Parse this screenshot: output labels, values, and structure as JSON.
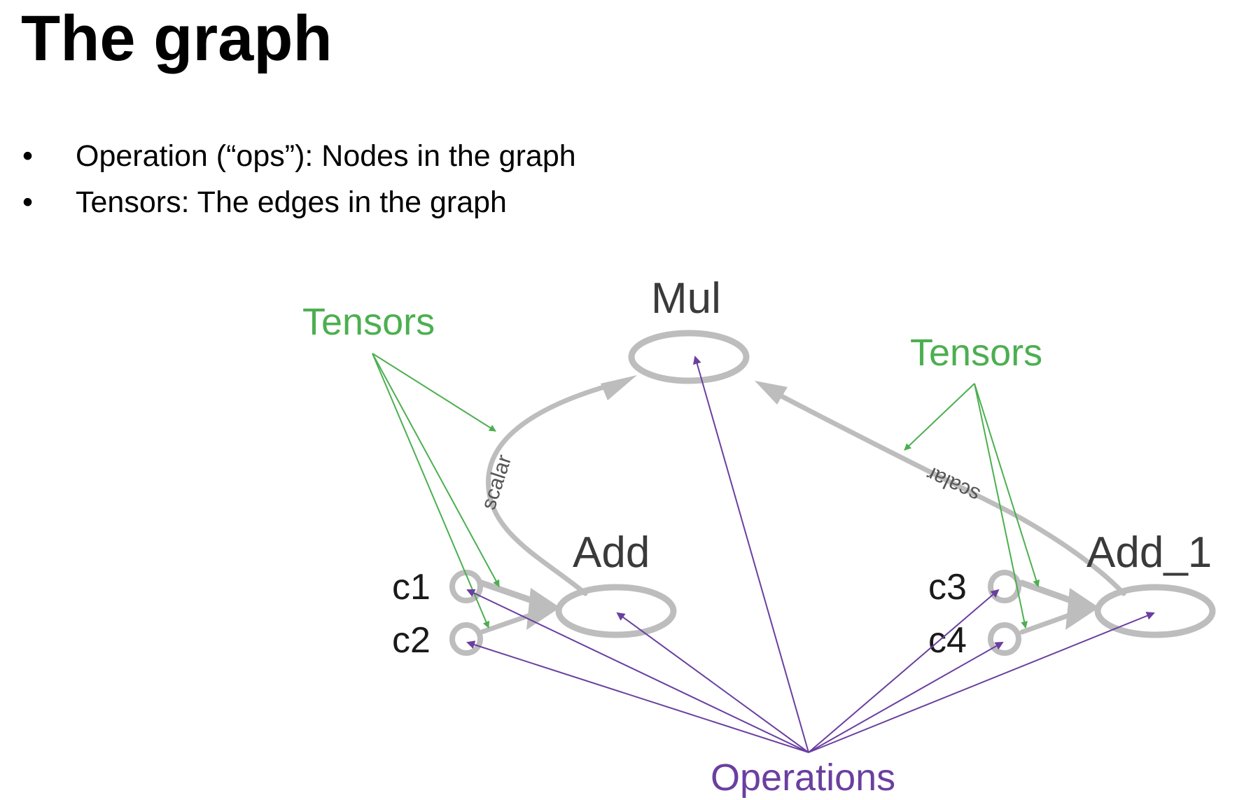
{
  "slide": {
    "title": "The graph",
    "bullets": [
      "Operation (“ops”): Nodes in the graph",
      "Tensors: The edges in the graph"
    ]
  },
  "diagram": {
    "nodes": {
      "mul": "Mul",
      "add": "Add",
      "add_1": "Add_1",
      "c1": "c1",
      "c2": "c2",
      "c3": "c3",
      "c4": "c4"
    },
    "edge_labels": {
      "left_scalar": "scalar",
      "right_scalar": "scalar"
    },
    "annotations": {
      "tensors_left": "Tensors",
      "tensors_right": "Tensors",
      "operations": "Operations"
    },
    "colors": {
      "graph": "#bdbdbd",
      "node_text": "#3a3a3a",
      "tensors": "#4caf50",
      "operations": "#6a3fa0"
    }
  }
}
